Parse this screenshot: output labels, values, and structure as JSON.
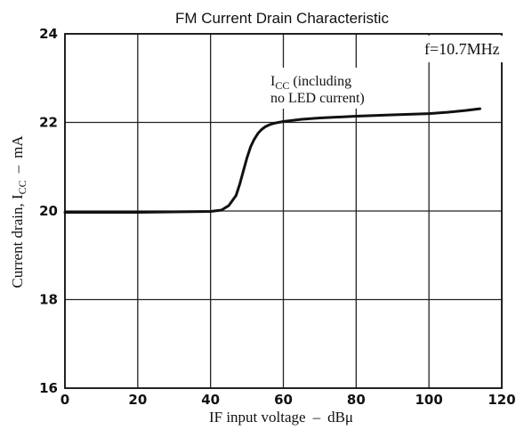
{
  "chart_data": {
    "type": "line",
    "title": "FM Current Drain Characteristic",
    "xlabel_main": "IF input voltage",
    "xlabel_unit": "dBμ",
    "ylabel_main": "Current drain, I",
    "ylabel_sub": "CC",
    "ylabel_unit": "mA",
    "xlim": [
      0,
      120
    ],
    "ylim": [
      16,
      24
    ],
    "x_ticks": [
      0,
      20,
      40,
      60,
      80,
      100,
      120
    ],
    "y_ticks": [
      16,
      18,
      20,
      22,
      24
    ],
    "grid": true,
    "annotation_freq": "f=10.7MHz",
    "series": [
      {
        "label_main": "I",
        "label_sub": "CC",
        "label_rest": " (including",
        "label_line2": "no LED current)",
        "x": [
          0,
          10,
          20,
          30,
          40,
          43,
          45,
          47,
          48,
          49,
          50,
          51,
          52,
          53,
          54,
          55,
          56,
          57,
          58,
          60,
          62,
          65,
          70,
          80,
          90,
          100,
          105,
          110,
          114
        ],
        "y": [
          19.97,
          19.97,
          19.97,
          19.98,
          19.99,
          20.02,
          20.12,
          20.35,
          20.6,
          20.9,
          21.2,
          21.45,
          21.62,
          21.75,
          21.84,
          21.9,
          21.94,
          21.97,
          21.99,
          22.02,
          22.04,
          22.07,
          22.1,
          22.14,
          22.17,
          22.2,
          22.23,
          22.27,
          22.31
        ]
      }
    ]
  }
}
